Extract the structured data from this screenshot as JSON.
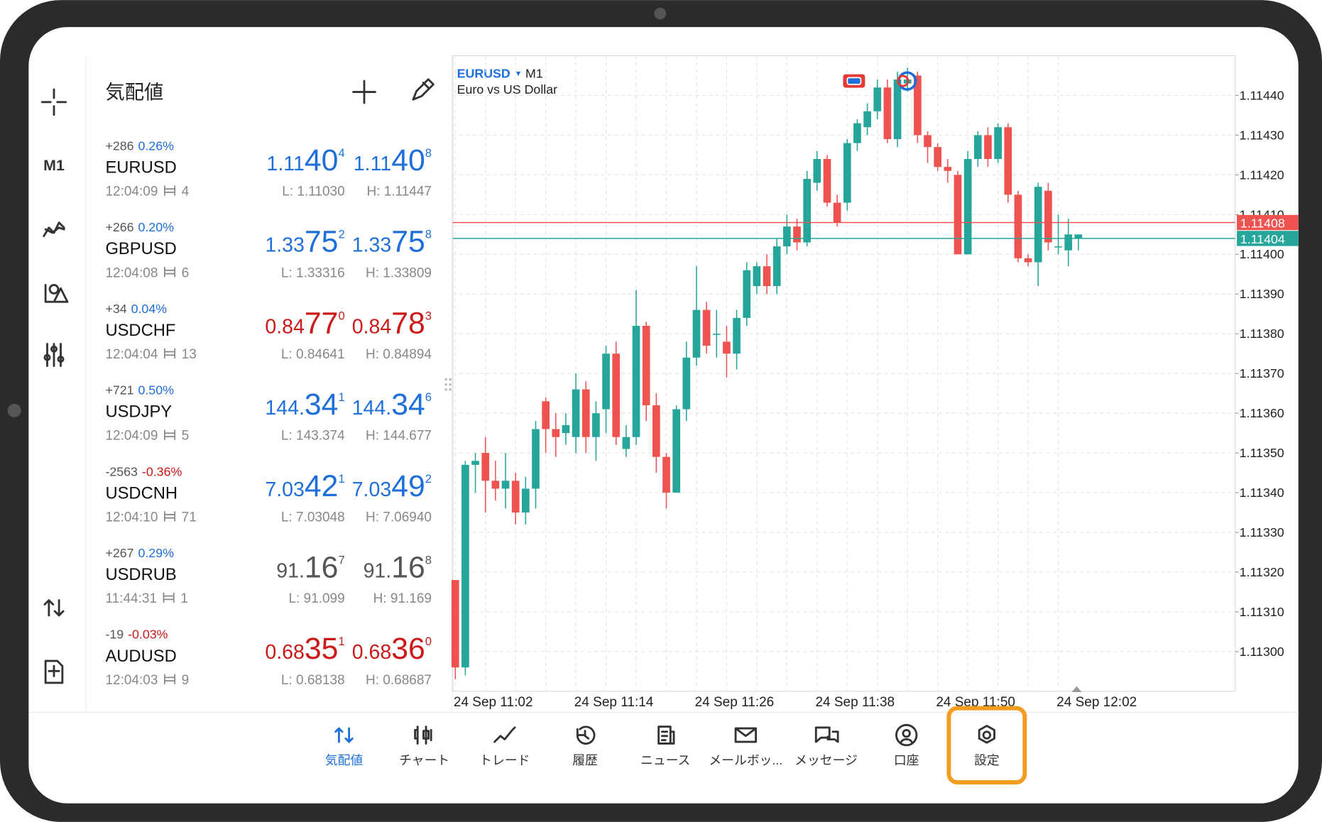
{
  "sidebar": {
    "timeframe": "M1"
  },
  "watchlist": {
    "title": "気配値",
    "rows": [
      {
        "change": "+286",
        "change_pct": "0.26%",
        "symbol": "EURUSD",
        "time": "12:04:09",
        "ticks": "4",
        "bid": {
          "head": "1.11",
          "big": "40",
          "tail": "4"
        },
        "ask": {
          "head": "1.11",
          "big": "40",
          "tail": "8"
        },
        "low": "L: 1.11030",
        "high": "H: 1.11447",
        "price_color": "#1e6fd9",
        "change_color": "#1e6fd9"
      },
      {
        "change": "+266",
        "change_pct": "0.20%",
        "symbol": "GBPUSD",
        "time": "12:04:08",
        "ticks": "6",
        "bid": {
          "head": "1.33",
          "big": "75",
          "tail": "2"
        },
        "ask": {
          "head": "1.33",
          "big": "75",
          "tail": "8"
        },
        "low": "L: 1.33316",
        "high": "H: 1.33809",
        "price_color": "#1e6fd9",
        "change_color": "#1e6fd9"
      },
      {
        "change": "+34",
        "change_pct": "0.04%",
        "symbol": "USDCHF",
        "time": "12:04:04",
        "ticks": "13",
        "bid": {
          "head": "0.84",
          "big": "77",
          "tail": "0"
        },
        "ask": {
          "head": "0.84",
          "big": "78",
          "tail": "3"
        },
        "low": "L: 0.84641",
        "high": "H: 0.84894",
        "price_color": "#cc1a1a",
        "change_color": "#1e6fd9"
      },
      {
        "change": "+721",
        "change_pct": "0.50%",
        "symbol": "USDJPY",
        "time": "12:04:09",
        "ticks": "5",
        "bid": {
          "head": "144.",
          "big": "34",
          "tail": "1"
        },
        "ask": {
          "head": "144.",
          "big": "34",
          "tail": "6"
        },
        "low": "L: 143.374",
        "high": "H: 144.677",
        "price_color": "#1e6fd9",
        "change_color": "#1e6fd9"
      },
      {
        "change": "-2563",
        "change_pct": "-0.36%",
        "symbol": "USDCNH",
        "time": "12:04:10",
        "ticks": "71",
        "bid": {
          "head": "7.03",
          "big": "42",
          "tail": "1"
        },
        "ask": {
          "head": "7.03",
          "big": "49",
          "tail": "2"
        },
        "low": "L: 7.03048",
        "high": "H: 7.06940",
        "price_color": "#1e6fd9",
        "change_color": "#cc1a1a"
      },
      {
        "change": "+267",
        "change_pct": "0.29%",
        "symbol": "USDRUB",
        "time": "11:44:31",
        "ticks": "1",
        "bid": {
          "head": "91.",
          "big": "16",
          "tail": "7"
        },
        "ask": {
          "head": "91.",
          "big": "16",
          "tail": "8"
        },
        "low": "L: 91.099",
        "high": "H: 91.169",
        "price_color": "#555555",
        "change_color": "#1e6fd9"
      },
      {
        "change": "-19",
        "change_pct": "-0.03%",
        "symbol": "AUDUSD",
        "time": "12:04:03",
        "ticks": "9",
        "bid": {
          "head": "0.68",
          "big": "35",
          "tail": "1"
        },
        "ask": {
          "head": "0.68",
          "big": "36",
          "tail": "0"
        },
        "low": "L: 0.68138",
        "high": "H: 0.68687",
        "price_color": "#cc1a1a",
        "change_color": "#cc1a1a"
      }
    ]
  },
  "chart": {
    "type": "candlestick",
    "symbol": "EURUSD",
    "timeframe": "M1",
    "description": "Euro vs US Dollar",
    "categories": [
      "24 Sep 11:02",
      null,
      null,
      null,
      null,
      null,
      null,
      null,
      null,
      null,
      null,
      null,
      "24 Sep 11:14",
      null,
      null,
      null,
      null,
      null,
      null,
      null,
      null,
      null,
      null,
      null,
      "24 Sep 11:26",
      null,
      null,
      null,
      null,
      null,
      null,
      null,
      null,
      null,
      null,
      null,
      "24 Sep 11:38",
      null,
      null,
      null,
      null,
      null,
      null,
      null,
      null,
      null,
      null,
      null,
      "24 Sep 11:50",
      null,
      null,
      null,
      null,
      null,
      null,
      null,
      null,
      null,
      null,
      null,
      "24 Sep 12:02",
      null,
      null
    ],
    "open": [
      1.11318,
      1.11296,
      1.11347,
      1.1135,
      1.11343,
      1.11341,
      1.11343,
      1.11335,
      1.11341,
      1.11363,
      1.11356,
      1.11355,
      1.11354,
      1.11366,
      1.11354,
      1.11361,
      1.11375,
      1.11351,
      1.11354,
      1.11382,
      1.11362,
      1.11349,
      1.1134,
      1.11361,
      1.11374,
      1.11386,
      1.1138,
      1.11378,
      1.11375,
      1.11384,
      1.11392,
      1.11397,
      1.11392,
      1.11402,
      1.11407,
      1.11403,
      1.11418,
      1.11424,
      1.11413,
      1.11413,
      1.11428,
      1.11432,
      1.11436,
      1.11442,
      1.11429,
      1.11443,
      1.11445,
      1.1143,
      1.11427,
      1.11422,
      1.1142,
      1.114,
      1.11424,
      1.1143,
      1.11424,
      1.11432,
      1.11415,
      1.11399,
      1.11398,
      1.11416,
      1.11402,
      1.11401,
      1.11404
    ],
    "high": [
      1.11318,
      1.11348,
      1.1135,
      1.11354,
      1.11348,
      1.1135,
      1.11345,
      1.11344,
      1.11358,
      1.11364,
      1.1136,
      1.1136,
      1.1137,
      1.11368,
      1.11363,
      1.11377,
      1.11378,
      1.11357,
      1.11391,
      1.11383,
      1.11365,
      1.1135,
      1.11362,
      1.11378,
      1.11397,
      1.11388,
      1.11386,
      1.11382,
      1.11386,
      1.11398,
      1.11398,
      1.114,
      1.11404,
      1.1141,
      1.11409,
      1.11421,
      1.11426,
      1.11425,
      1.11415,
      1.11429,
      1.11434,
      1.11438,
      1.11444,
      1.11444,
      1.11446,
      1.11447,
      1.11446,
      1.11431,
      1.11428,
      1.11424,
      1.11421,
      1.11426,
      1.11431,
      1.11432,
      1.11433,
      1.11433,
      1.11416,
      1.114,
      1.11418,
      1.11418,
      1.1141,
      1.11409,
      1.11405
    ],
    "low": [
      1.11293,
      1.11294,
      1.1134,
      1.11335,
      1.11338,
      1.11336,
      1.11332,
      1.11332,
      1.11336,
      1.1135,
      1.11349,
      1.11352,
      1.1135,
      1.1135,
      1.11348,
      1.11355,
      1.11352,
      1.11349,
      1.11352,
      1.11358,
      1.11345,
      1.11336,
      1.1134,
      1.11358,
      1.11372,
      1.11375,
      1.11374,
      1.11369,
      1.11371,
      1.11382,
      1.1139,
      1.1139,
      1.1139,
      1.114,
      1.11401,
      1.11402,
      1.11416,
      1.11412,
      1.11407,
      1.11411,
      1.11426,
      1.1143,
      1.11434,
      1.11428,
      1.11427,
      1.11441,
      1.11428,
      1.11423,
      1.11421,
      1.11418,
      1.114,
      1.114,
      1.11422,
      1.11422,
      1.11423,
      1.11413,
      1.11398,
      1.11397,
      1.11392,
      1.11401,
      1.114,
      1.11397,
      1.11401
    ],
    "close": [
      1.11296,
      1.11347,
      1.11348,
      1.11343,
      1.11341,
      1.11343,
      1.11335,
      1.11341,
      1.11356,
      1.11356,
      1.11354,
      1.11357,
      1.11366,
      1.11354,
      1.1136,
      1.11375,
      1.11354,
      1.11354,
      1.11382,
      1.11362,
      1.11349,
      1.1134,
      1.11361,
      1.11374,
      1.11386,
      1.11377,
      1.1138,
      1.11375,
      1.11384,
      1.11396,
      1.11397,
      1.11392,
      1.11402,
      1.11407,
      1.11403,
      1.11419,
      1.11424,
      1.11413,
      1.11408,
      1.11428,
      1.11433,
      1.11436,
      1.11442,
      1.11429,
      1.11444,
      1.11444,
      1.1143,
      1.11427,
      1.11422,
      1.11421,
      1.114,
      1.11424,
      1.1143,
      1.11424,
      1.11432,
      1.11415,
      1.11399,
      1.11398,
      1.11417,
      1.11403,
      1.11402,
      1.11405,
      1.11405
    ],
    "ylim": [
      1.1129,
      1.1145
    ],
    "yticks": [
      {
        "value": 1.113,
        "label": "1.11300"
      },
      {
        "value": 1.1131,
        "label": "1.11310"
      },
      {
        "value": 1.1132,
        "label": "1.11320"
      },
      {
        "value": 1.1133,
        "label": "1.11330"
      },
      {
        "value": 1.1134,
        "label": "1.11340"
      },
      {
        "value": 1.1135,
        "label": "1.11350"
      },
      {
        "value": 1.1136,
        "label": "1.11360"
      },
      {
        "value": 1.1137,
        "label": "1.11370"
      },
      {
        "value": 1.1138,
        "label": "1.11380"
      },
      {
        "value": 1.1139,
        "label": "1.11390"
      },
      {
        "value": 1.114,
        "label": "1.11400"
      },
      {
        "value": 1.1141,
        "label": "1.11410"
      },
      {
        "value": 1.1142,
        "label": "1.11420"
      },
      {
        "value": 1.1143,
        "label": "1.11430"
      },
      {
        "value": 1.1144,
        "label": "1.11440"
      }
    ],
    "up_color": "#26a69a",
    "down_color": "#ef5350",
    "grid": true,
    "price_lines": [
      {
        "value": 1.11408,
        "label": "1.11408",
        "color": "#ef5350"
      },
      {
        "value": 1.11404,
        "label": "1.11404",
        "color": "#26a69a"
      }
    ]
  },
  "bottom_nav": {
    "items": [
      {
        "label": "気配値",
        "active": true,
        "highlight": false
      },
      {
        "label": "チャート",
        "active": false,
        "highlight": false
      },
      {
        "label": "トレード",
        "active": false,
        "highlight": false
      },
      {
        "label": "履歴",
        "active": false,
        "highlight": false
      },
      {
        "label": "ニュース",
        "active": false,
        "highlight": false
      },
      {
        "label": "メールボッ...",
        "active": false,
        "highlight": false
      },
      {
        "label": "メッセージ",
        "active": false,
        "highlight": false
      },
      {
        "label": "口座",
        "active": false,
        "highlight": false
      },
      {
        "label": "設定",
        "active": false,
        "highlight": true
      }
    ]
  }
}
